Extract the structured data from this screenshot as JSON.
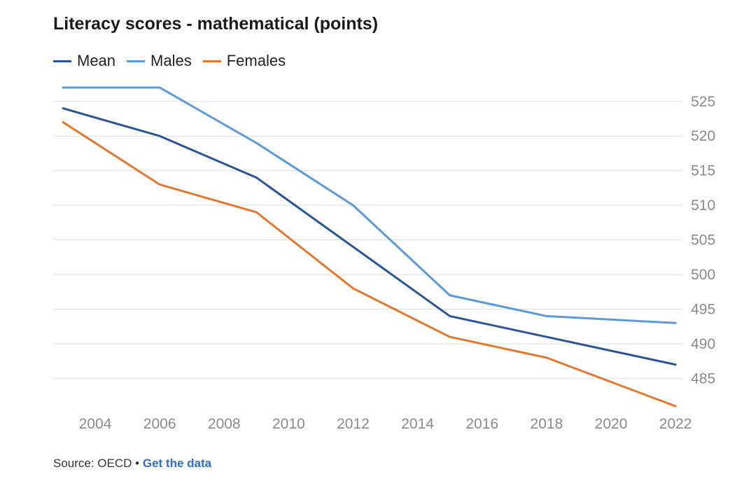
{
  "chart_data": {
    "type": "line",
    "title": "Literacy scores - mathematical (points)",
    "xlabel": "",
    "ylabel": "",
    "x": [
      2003,
      2006,
      2009,
      2012,
      2015,
      2018,
      2022
    ],
    "series": [
      {
        "name": "Mean",
        "color": "#2b5592",
        "values": [
          524,
          520,
          514,
          504,
          494,
          491,
          487
        ]
      },
      {
        "name": "Males",
        "color": "#5b9ad6",
        "values": [
          527,
          527,
          519,
          510,
          497,
          494,
          493
        ]
      },
      {
        "name": "Females",
        "color": "#e0782f",
        "values": [
          522,
          513,
          509,
          498,
          491,
          488,
          481
        ]
      }
    ],
    "xlim": [
      2003,
      2022
    ],
    "ylim": [
      481,
      527
    ],
    "x_ticks": [
      "2004",
      "2006",
      "2008",
      "2010",
      "2012",
      "2014",
      "2016",
      "2018",
      "2020",
      "2022"
    ],
    "y_ticks": [
      "525",
      "520",
      "515",
      "510",
      "505",
      "500",
      "495",
      "490",
      "485"
    ],
    "y_axis_side": "right",
    "grid": "horizontal",
    "legend": "top-left"
  },
  "footer": {
    "source": "Source: OECD •",
    "link": "Get the data"
  }
}
